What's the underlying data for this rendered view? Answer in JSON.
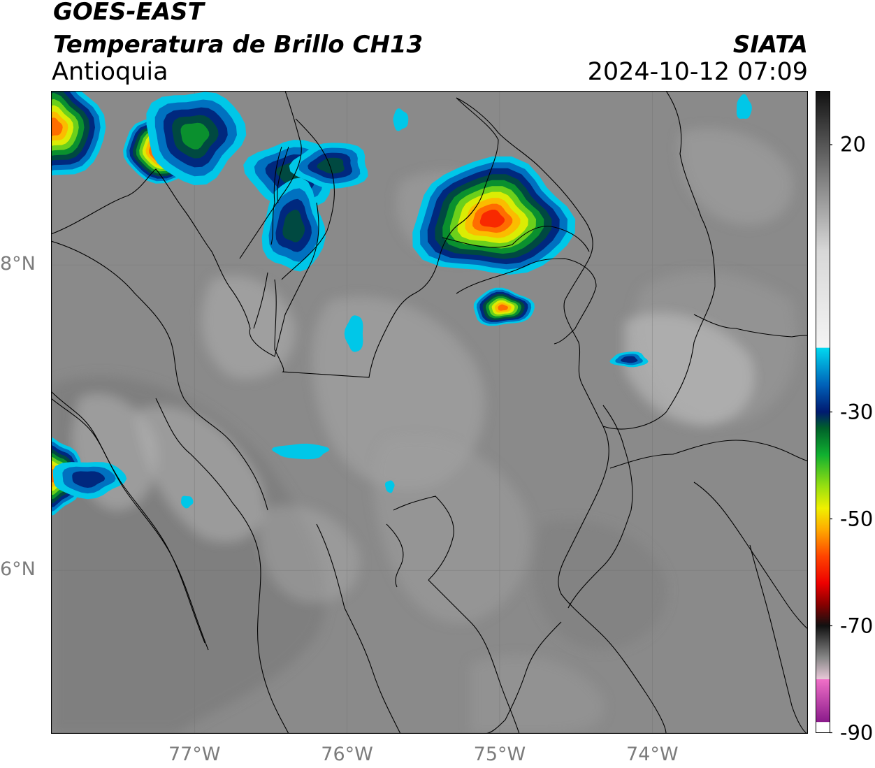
{
  "header": {
    "satellite": "GOES-EAST",
    "product": "Temperatura de Brillo CH13",
    "region": "Antioquia",
    "source": "SIATA",
    "datetime": "2024-10-12 07:09"
  },
  "map": {
    "extent": {
      "lon_min": -77.94,
      "lon_max": -72.98,
      "lat_min": 4.93,
      "lat_max": 9.14
    },
    "lat_ticks": [
      {
        "value": 8,
        "label": "8°N"
      },
      {
        "value": 6,
        "label": "6°N"
      }
    ],
    "lon_ticks": [
      {
        "value": -77,
        "label": "77°W"
      },
      {
        "value": -76,
        "label": "76°W"
      },
      {
        "value": -75,
        "label": "75°W"
      },
      {
        "value": -74,
        "label": "74°W"
      }
    ],
    "gridlines": true,
    "background_color": "#8a8a8a",
    "cloud_cells": [
      {
        "lon": -75.05,
        "lat": 8.3,
        "rx": 0.52,
        "ry": 0.38,
        "min_temp": -60
      },
      {
        "lon": -74.98,
        "lat": 7.72,
        "rx": 0.2,
        "ry": 0.12,
        "min_temp": -55
      },
      {
        "lon": -77.18,
        "lat": 8.75,
        "rx": 0.3,
        "ry": 0.2,
        "min_temp": -70
      },
      {
        "lon": -77.0,
        "lat": 8.85,
        "rx": 0.32,
        "ry": 0.3,
        "min_temp": -40
      },
      {
        "lon": -76.35,
        "lat": 8.6,
        "rx": 0.3,
        "ry": 0.22,
        "min_temp": -34
      },
      {
        "lon": -76.1,
        "lat": 8.65,
        "rx": 0.25,
        "ry": 0.15,
        "min_temp": -32
      },
      {
        "lon": -76.35,
        "lat": 8.25,
        "rx": 0.2,
        "ry": 0.3,
        "min_temp": -32
      },
      {
        "lon": -77.92,
        "lat": 8.9,
        "rx": 0.32,
        "ry": 0.35,
        "min_temp": -55
      },
      {
        "lon": -77.92,
        "lat": 6.62,
        "rx": 0.18,
        "ry": 0.25,
        "min_temp": -55
      },
      {
        "lon": -77.7,
        "lat": 6.6,
        "rx": 0.24,
        "ry": 0.12,
        "min_temp": -30
      },
      {
        "lon": -76.3,
        "lat": 6.78,
        "rx": 0.18,
        "ry": 0.05,
        "min_temp": -22
      },
      {
        "lon": -75.95,
        "lat": 7.55,
        "rx": 0.06,
        "ry": 0.12,
        "min_temp": -22
      },
      {
        "lon": -74.15,
        "lat": 7.38,
        "rx": 0.12,
        "ry": 0.05,
        "min_temp": -30
      },
      {
        "lon": -73.4,
        "lat": 9.03,
        "rx": 0.05,
        "ry": 0.08,
        "min_temp": -22
      },
      {
        "lon": -75.65,
        "lat": 8.95,
        "rx": 0.05,
        "ry": 0.07,
        "min_temp": -22
      },
      {
        "lon": -77.05,
        "lat": 6.45,
        "rx": 0.04,
        "ry": 0.04,
        "min_temp": -22
      },
      {
        "lon": -75.72,
        "lat": 6.55,
        "rx": 0.03,
        "ry": 0.04,
        "min_temp": -22
      }
    ]
  },
  "colorbar": {
    "tick_labels": [
      "20",
      "-30",
      "-50",
      "-70",
      "-90"
    ],
    "tick_values": [
      20,
      -30,
      -50,
      -70,
      -90
    ],
    "value_range": [
      -90,
      30
    ],
    "color_stops": [
      {
        "value": 30,
        "color": "#111111"
      },
      {
        "value": 15,
        "color": "#777777"
      },
      {
        "value": 0,
        "color": "#d8d8d8"
      },
      {
        "value": -18,
        "color": "#f4f4f4"
      },
      {
        "value": -18.01,
        "color": "#00d8f0"
      },
      {
        "value": -25,
        "color": "#0060b8"
      },
      {
        "value": -30,
        "color": "#001a70"
      },
      {
        "value": -33,
        "color": "#00602a"
      },
      {
        "value": -38,
        "color": "#10b030"
      },
      {
        "value": -44,
        "color": "#9ae010"
      },
      {
        "value": -48,
        "color": "#f0f000"
      },
      {
        "value": -52,
        "color": "#ffaa00"
      },
      {
        "value": -57,
        "color": "#ff4400"
      },
      {
        "value": -62,
        "color": "#ee0000"
      },
      {
        "value": -66,
        "color": "#880000"
      },
      {
        "value": -70,
        "color": "#111111"
      },
      {
        "value": -76,
        "color": "#888888"
      },
      {
        "value": -80,
        "color": "#e8c8d8"
      },
      {
        "value": -80.01,
        "color": "#f070c8"
      },
      {
        "value": -88,
        "color": "#8a1a8a"
      },
      {
        "value": -88.01,
        "color": "#ffffff"
      },
      {
        "value": -90,
        "color": "#ffffff"
      }
    ]
  }
}
